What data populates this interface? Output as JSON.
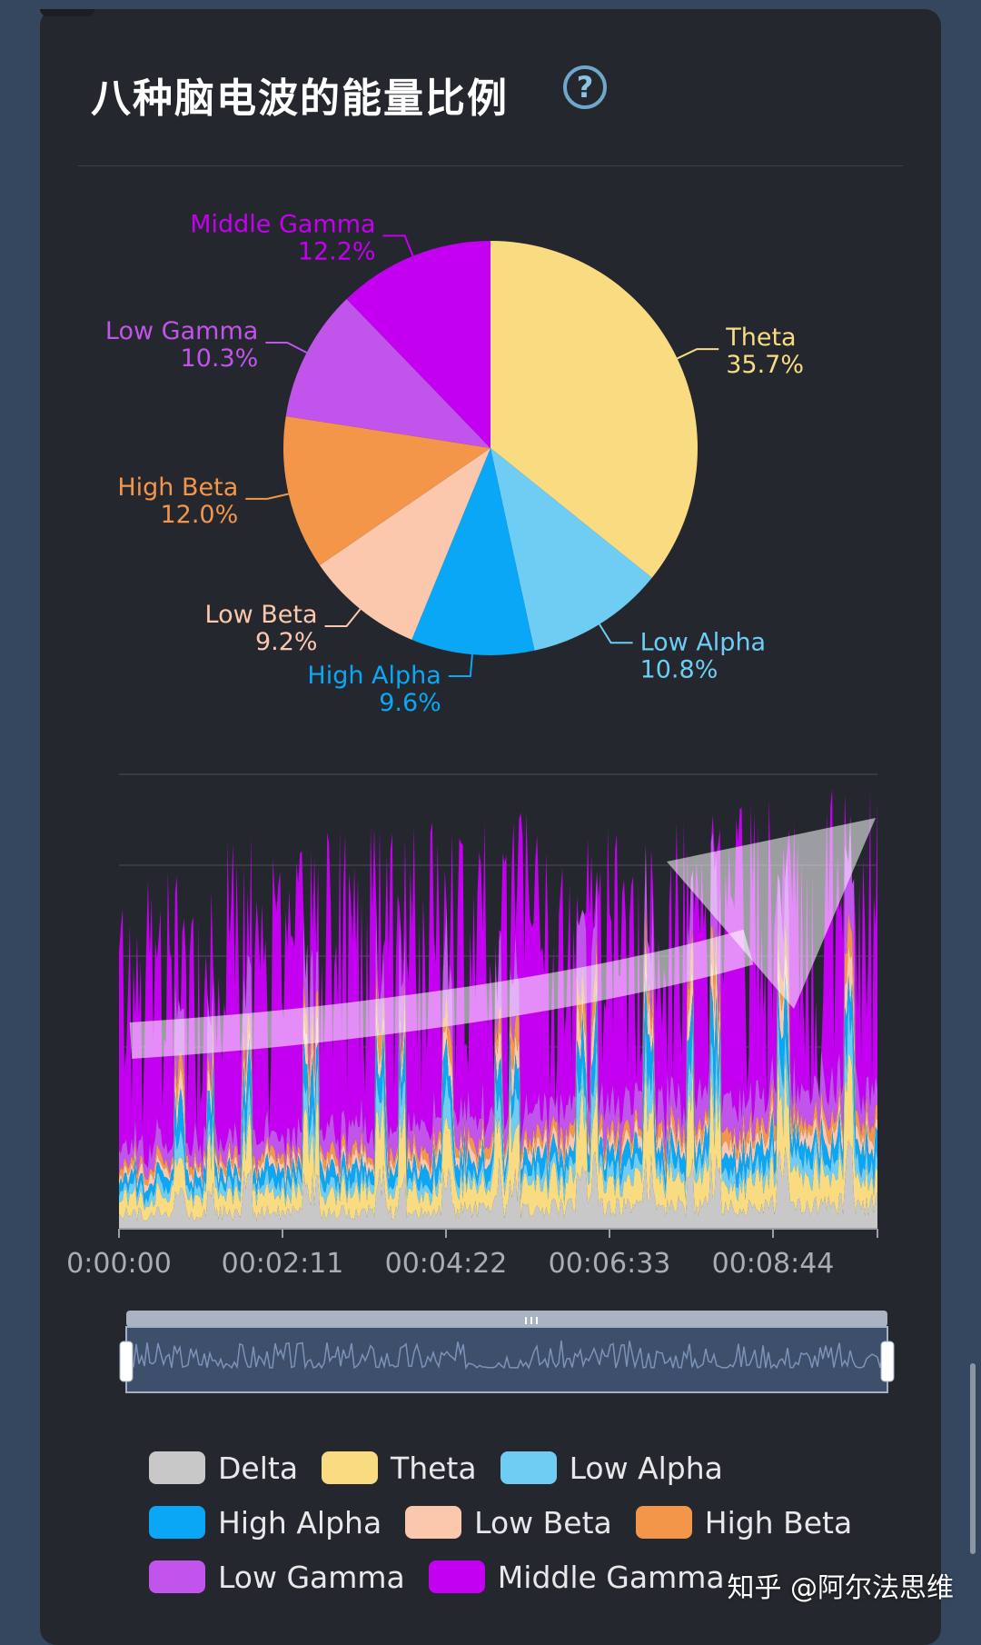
{
  "title": "八种脑电波的能量比例",
  "help_icon": "question-circle-icon",
  "watermark": "知乎 @阿尔法思维",
  "colors": {
    "Delta": "#c8c8c8",
    "Theta": "#f9dc82",
    "Low Alpha": "#6fcdf4",
    "High Alpha": "#0aa7f6",
    "Low Beta": "#fbc8ad",
    "High Beta": "#f3964a",
    "Low Gamma": "#c154ea",
    "Middle Gamma": "#c300f0"
  },
  "legend": [
    [
      "Delta",
      "Theta",
      "Low Alpha"
    ],
    [
      "High Alpha",
      "Low Beta",
      "High Beta"
    ],
    [
      "Low Gamma",
      "Middle Gamma"
    ]
  ],
  "chart_data": [
    {
      "type": "pie",
      "title": "八种脑电波的能量比例",
      "slices": [
        {
          "name": "Theta",
          "value": 35.7,
          "label": "35.7%"
        },
        {
          "name": "Low Alpha",
          "value": 10.8,
          "label": "10.8%"
        },
        {
          "name": "High Alpha",
          "value": 9.6,
          "label": "9.6%"
        },
        {
          "name": "Low Beta",
          "value": 9.2,
          "label": "9.2%"
        },
        {
          "name": "High Beta",
          "value": 12.0,
          "label": "12.0%"
        },
        {
          "name": "Low Gamma",
          "value": 10.3,
          "label": "10.3%"
        },
        {
          "name": "Middle Gamma",
          "value": 12.2,
          "label": "12.2%"
        }
      ]
    },
    {
      "type": "area",
      "stacked": true,
      "x_tick_labels": [
        "0:00:00",
        "00:02:11",
        "00:04:22",
        "00:06:33",
        "00:08:44"
      ],
      "series_order": [
        "Delta",
        "Theta",
        "Low Alpha",
        "High Alpha",
        "Low Beta",
        "High Beta",
        "Low Gamma",
        "Middle Gamma"
      ],
      "grid": true,
      "annotation": "arrow-up-right (overlay)"
    }
  ]
}
